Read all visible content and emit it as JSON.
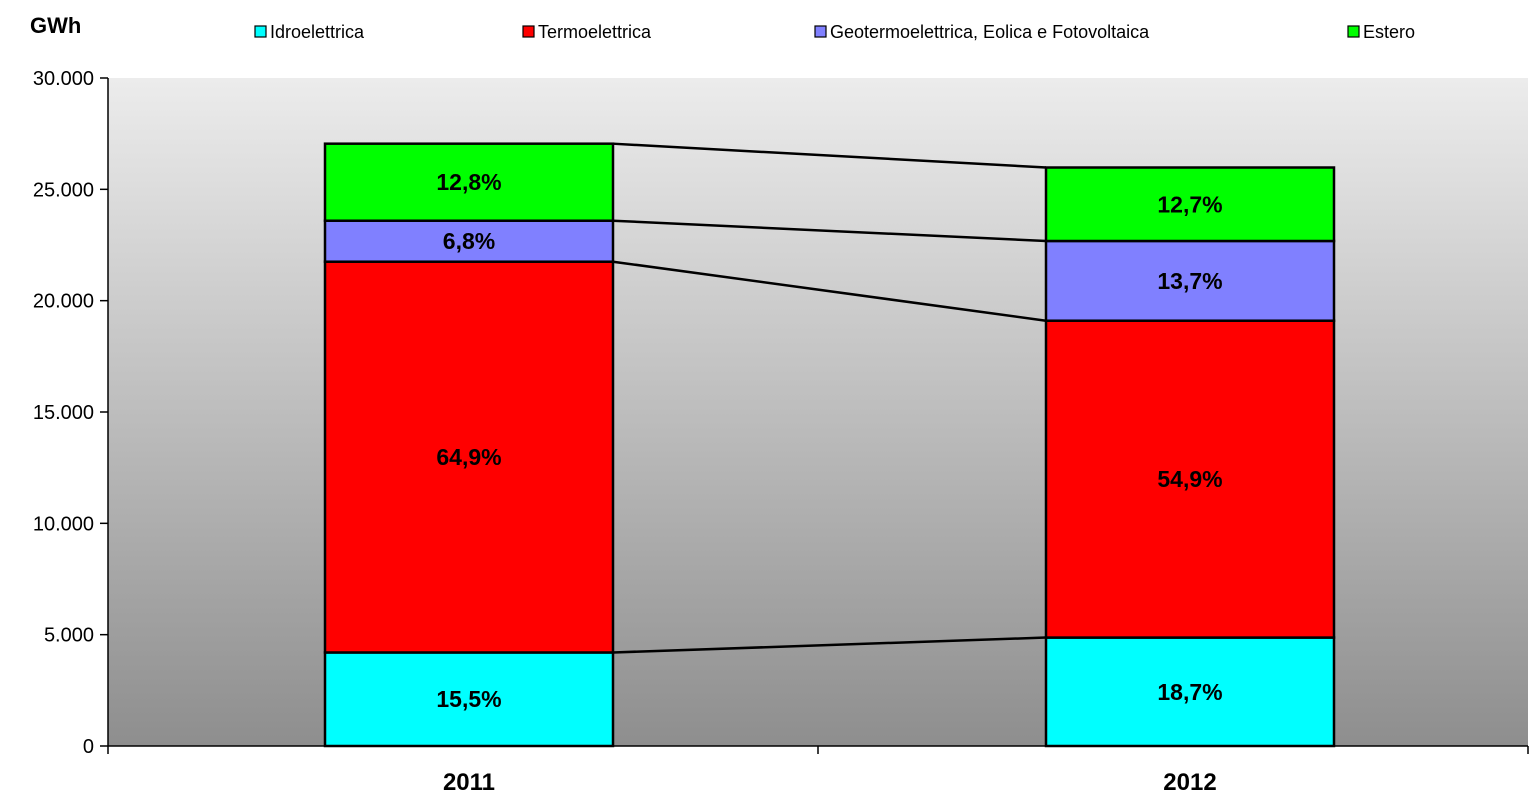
{
  "chart_data": {
    "type": "bar",
    "stacked": true,
    "unit_label": "GWh",
    "categories": [
      "2011",
      "2012"
    ],
    "series": [
      {
        "name": "Idroelettrica",
        "color": "#00FFFF",
        "values": [
          4200,
          4870
        ],
        "labels": [
          "15,5%",
          "18,7%"
        ]
      },
      {
        "name": "Termoelettrica",
        "color": "#FF0000",
        "values": [
          17550,
          14230
        ],
        "labels": [
          "64,9%",
          "54,9%"
        ]
      },
      {
        "name": "Geotermoelettrica, Eolica e Fotovoltaica",
        "color": "#8080FF",
        "values": [
          1840,
          3580
        ],
        "labels": [
          "6,8%",
          "13,7%"
        ]
      },
      {
        "name": "Estero",
        "color": "#00FF00",
        "values": [
          3460,
          3300
        ],
        "labels": [
          "12,8%",
          "12,7%"
        ]
      }
    ],
    "yticks": [
      "0",
      "5.000",
      "10.000",
      "15.000",
      "20.000",
      "25.000",
      "30.000"
    ],
    "ylim": [
      0,
      30000
    ],
    "legend_position": "top",
    "background": "gray-gradient",
    "connector_lines": true
  }
}
